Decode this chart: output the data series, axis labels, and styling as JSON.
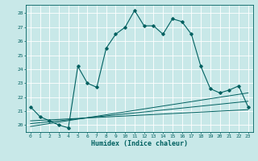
{
  "title": "",
  "xlabel": "Humidex (Indice chaleur)",
  "bg_color": "#c8e8e8",
  "grid_color": "#ffffff",
  "line_color": "#006060",
  "xlim": [
    -0.5,
    23.5
  ],
  "ylim": [
    19.5,
    28.6
  ],
  "yticks": [
    20,
    21,
    22,
    23,
    24,
    25,
    26,
    27,
    28
  ],
  "xticks": [
    0,
    1,
    2,
    3,
    4,
    5,
    6,
    7,
    8,
    9,
    10,
    11,
    12,
    13,
    14,
    15,
    16,
    17,
    18,
    19,
    20,
    21,
    22,
    23
  ],
  "main_x": [
    0,
    1,
    2,
    3,
    4,
    5,
    6,
    7,
    8,
    9,
    10,
    11,
    12,
    13,
    14,
    15,
    16,
    17,
    18,
    19,
    20,
    21,
    22,
    23
  ],
  "main_y": [
    21.3,
    20.6,
    20.3,
    20.0,
    19.8,
    24.2,
    23.0,
    22.7,
    25.5,
    26.5,
    27.0,
    28.2,
    27.1,
    27.1,
    26.5,
    27.6,
    27.4,
    26.5,
    24.2,
    22.6,
    22.3,
    22.5,
    22.8,
    21.3
  ],
  "line1_x": [
    0,
    23
  ],
  "line1_y": [
    20.3,
    21.1
  ],
  "line2_x": [
    0,
    23
  ],
  "line2_y": [
    20.1,
    21.7
  ],
  "line3_x": [
    0,
    23
  ],
  "line3_y": [
    19.9,
    22.3
  ],
  "tick_fontsize": 4.5,
  "xlabel_fontsize": 6.0
}
